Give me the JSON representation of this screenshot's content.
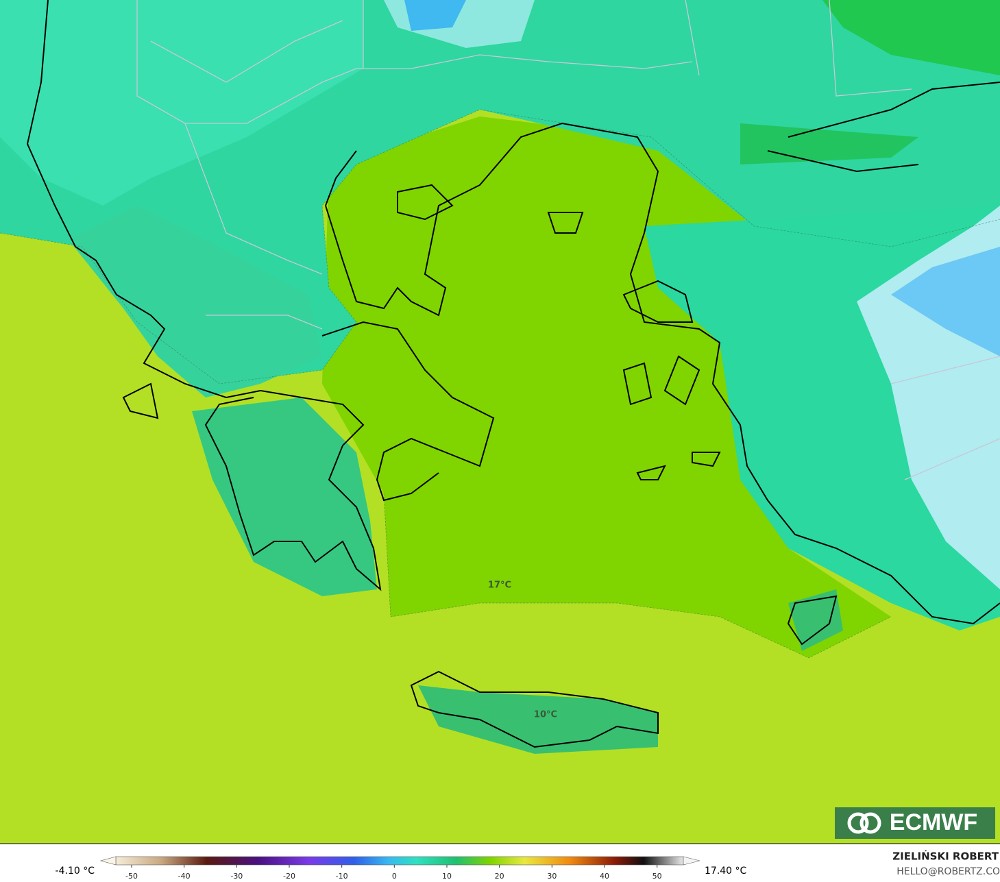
{
  "map": {
    "labels": [
      "17°C",
      "10°C"
    ],
    "logo": "ECMWF",
    "colorbar": {
      "min_label": "-4.10 °C",
      "max_label": "17.40 °C",
      "xlim": [
        -53,
        55
      ],
      "xticks": [
        -50,
        -40,
        -30,
        -20,
        -10,
        0,
        10,
        20,
        30,
        40,
        50
      ]
    },
    "credit": {
      "author": "ZIELIŃSKI ROBERT",
      "contact": "HELLO@ROBERTZ.CO"
    }
  }
}
